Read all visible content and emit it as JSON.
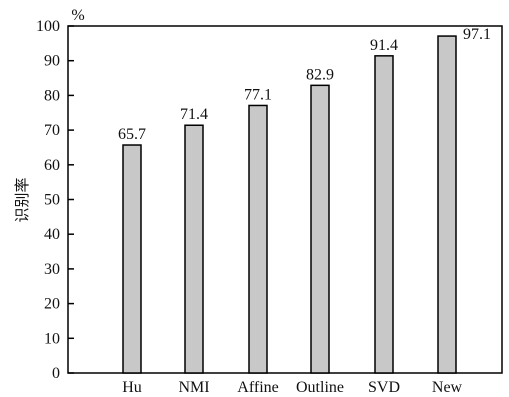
{
  "chart_data": {
    "type": "bar",
    "categories": [
      "Hu",
      "NMI",
      "Affine",
      "Outline",
      "SVD",
      "New"
    ],
    "values": [
      65.7,
      71.4,
      77.1,
      82.9,
      91.4,
      97.1
    ],
    "data_labels": [
      "65.7",
      "71.4",
      "77.1",
      "82.9",
      "91.4",
      "97.1"
    ],
    "ylabel": "识别率",
    "y_unit": "%",
    "ylim": [
      0,
      100
    ],
    "yticks": [
      0,
      10,
      20,
      30,
      40,
      50,
      60,
      70,
      80,
      90,
      100
    ],
    "ytick_labels": [
      "0",
      "10",
      "20",
      "30",
      "40",
      "50",
      "60",
      "70",
      "80",
      "90",
      "100"
    ],
    "grid": false,
    "bar_color": "#c8c8c8",
    "bar_edge_color": "#000000"
  }
}
